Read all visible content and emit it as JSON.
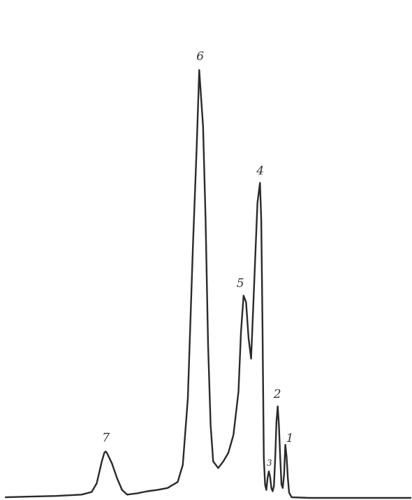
{
  "chart_data": {
    "type": "line",
    "title": "",
    "xlabel": "",
    "ylabel": "",
    "grid": false,
    "legend": "none",
    "color": "#2a2a2a",
    "series": [
      {
        "values": [
          [
            0,
            1
          ],
          [
            10,
            2
          ],
          [
            20,
            3
          ],
          [
            30,
            5
          ],
          [
            34,
            9
          ],
          [
            36,
            22
          ],
          [
            38,
            55
          ],
          [
            39,
            68
          ],
          [
            39.5,
            70
          ],
          [
            40,
            68
          ],
          [
            42,
            52
          ],
          [
            44,
            30
          ],
          [
            46,
            12
          ],
          [
            48,
            5
          ],
          [
            52,
            7
          ],
          [
            56,
            10
          ],
          [
            60,
            12
          ],
          [
            64,
            15
          ],
          [
            68,
            24
          ],
          [
            70,
            50
          ],
          [
            72,
            150
          ],
          [
            74,
            380
          ],
          [
            75.5,
            530
          ],
          [
            76.5,
            645
          ],
          [
            78,
            560
          ],
          [
            79,
            420
          ],
          [
            80,
            230
          ],
          [
            81,
            110
          ],
          [
            82,
            55
          ],
          [
            84,
            45
          ],
          [
            86,
            55
          ],
          [
            88,
            68
          ],
          [
            90,
            95
          ],
          [
            92,
            160
          ],
          [
            93,
            250
          ],
          [
            94,
            305
          ],
          [
            95,
            295
          ],
          [
            96,
            240
          ],
          [
            97,
            210
          ],
          [
            98,
            305
          ],
          [
            99.5,
            445
          ],
          [
            100.5,
            475
          ],
          [
            101,
            420
          ],
          [
            101.5,
            260
          ],
          [
            102,
            60
          ],
          [
            102.5,
            20
          ],
          [
            103,
            12
          ],
          [
            103.5,
            30
          ],
          [
            104,
            40
          ],
          [
            104.5,
            32
          ],
          [
            105,
            15
          ],
          [
            105.5,
            10
          ],
          [
            106,
            18
          ],
          [
            106.5,
            60
          ],
          [
            107,
            115
          ],
          [
            107.5,
            138
          ],
          [
            108,
            108
          ],
          [
            108.5,
            60
          ],
          [
            109,
            20
          ],
          [
            109.5,
            15
          ],
          [
            110,
            35
          ],
          [
            110.5,
            80
          ],
          [
            111,
            62
          ],
          [
            111.5,
            30
          ],
          [
            112,
            8
          ],
          [
            113,
            1
          ],
          [
            120,
            0
          ],
          [
            140,
            0
          ],
          [
            160,
            0
          ]
        ]
      }
    ],
    "peaks": [
      {
        "label": "1",
        "x": 110.5,
        "y": 80
      },
      {
        "label": "2",
        "x": 107.5,
        "y": 138
      },
      {
        "label": "3",
        "x": 104,
        "y": 40
      },
      {
        "label": "4",
        "x": 100.5,
        "y": 475
      },
      {
        "label": "5",
        "x": 94,
        "y": 305
      },
      {
        "label": "6",
        "x": 76.5,
        "y": 645
      },
      {
        "label": "7",
        "x": 39.5,
        "y": 70
      }
    ],
    "xlim": [
      0,
      160
    ],
    "ylim": [
      0,
      700
    ]
  }
}
